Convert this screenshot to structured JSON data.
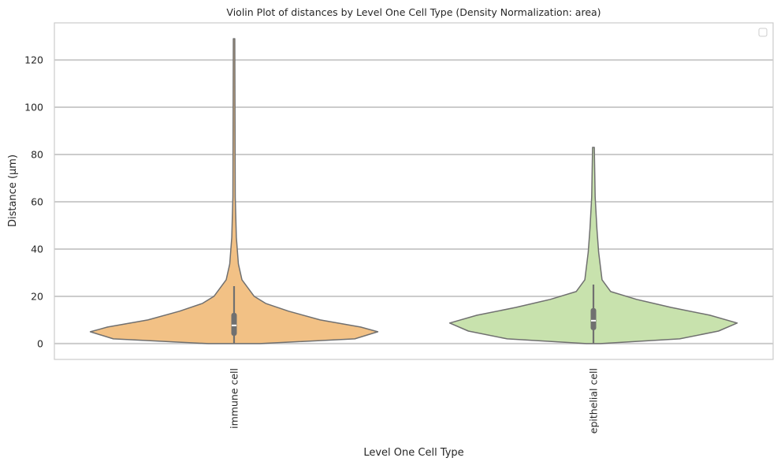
{
  "chart_data": {
    "type": "violin",
    "title": "Violin Plot of distances by Level One Cell Type (Density Normalization: area)",
    "xlabel": "Level One Cell Type",
    "ylabel": "Distance (µm)",
    "ylim": [
      -6.7,
      135.7
    ],
    "yticks": [
      0,
      20,
      40,
      60,
      80,
      100,
      120
    ],
    "grid": true,
    "legend": {
      "placement": "top-right",
      "entries": []
    },
    "categories": [
      "immune cell",
      "epithelial cell"
    ],
    "series": [
      {
        "name": "immune cell",
        "color": "#f2c185",
        "min": 0,
        "q1": 3.3,
        "median": 7.7,
        "q3": 13,
        "whisker_high": 24.3,
        "max": 129,
        "density_profile": [
          [
            0,
            0.18
          ],
          [
            2,
            0.84
          ],
          [
            5,
            1.0
          ],
          [
            7,
            0.88
          ],
          [
            10,
            0.6
          ],
          [
            13.7,
            0.38
          ],
          [
            17,
            0.22
          ],
          [
            20,
            0.14
          ],
          [
            27,
            0.055
          ],
          [
            33.7,
            0.03
          ],
          [
            45,
            0.016
          ],
          [
            62,
            0.008
          ],
          [
            129,
            0.005
          ]
        ]
      },
      {
        "name": "epithelial cell",
        "color": "#c8e2ad",
        "min": 0,
        "q1": 5.7,
        "median": 9.7,
        "q3": 15,
        "whisker_high": 25,
        "max": 83,
        "density_profile": [
          [
            0,
            0.05
          ],
          [
            2,
            0.6
          ],
          [
            5.3,
            0.87
          ],
          [
            8.7,
            1.0
          ],
          [
            12,
            0.81
          ],
          [
            15.3,
            0.54
          ],
          [
            18.7,
            0.3
          ],
          [
            22,
            0.12
          ],
          [
            27,
            0.06
          ],
          [
            38.7,
            0.036
          ],
          [
            48.7,
            0.024
          ],
          [
            62,
            0.012
          ],
          [
            83,
            0.006
          ]
        ]
      }
    ]
  }
}
